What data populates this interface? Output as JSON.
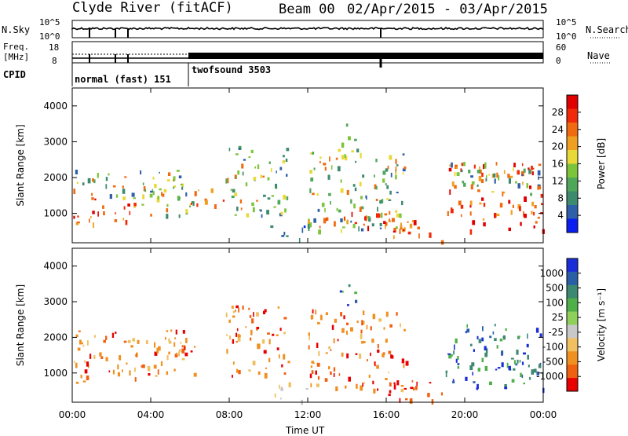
{
  "header": {
    "title": "Clyde River (fitACF)",
    "beam": "Beam 00",
    "date_range": "02/Apr/2015 - 03/Apr/2015"
  },
  "nsky_panel": {
    "left_label": "N.Sky",
    "right_label": "N.Search",
    "left_ticks": [
      "10^5",
      "10^0"
    ],
    "right_ticks": [
      "10^5",
      "10^0"
    ]
  },
  "freq_panel": {
    "left_label_1": "Freq.",
    "left_label_2": "[MHz]",
    "left_ticks": [
      "18",
      "8"
    ],
    "right_ticks": [
      "60",
      "0"
    ],
    "right_label": "Nave"
  },
  "cpid": {
    "label": "CPID",
    "mode_1": "normal (fast) 151",
    "mode_2": "twofsound 3503"
  },
  "x_axis": {
    "label": "Time UT",
    "ticks": [
      "00:00",
      "04:00",
      "08:00",
      "12:00",
      "16:00",
      "20:00",
      "00:00"
    ]
  },
  "chart_data": [
    {
      "type": "heatmap",
      "panel": "power",
      "ylabel": "Slant Range [km]",
      "yticks": [
        1000,
        2000,
        3000,
        4000
      ],
      "xlim": [
        0,
        24
      ],
      "ylim": [
        180,
        4500
      ],
      "colorbar": {
        "label": "Power [dB]",
        "ticks": [
          4,
          8,
          12,
          16,
          20,
          24,
          28
        ],
        "colors": [
          "#0a1ef0",
          "#2e5fa8",
          "#3d8a6e",
          "#4fa85a",
          "#7cc43a",
          "#e8d838",
          "#f0a020",
          "#f06a10",
          "#f02a08",
          "#e00000"
        ]
      },
      "blobs": [
        {
          "t0": 0.0,
          "t1": 3.2,
          "r0": 700,
          "r1": 1400,
          "level": "high"
        },
        {
          "t0": 0.0,
          "t1": 5.8,
          "r0": 1400,
          "r1": 2200,
          "level": "mid"
        },
        {
          "t0": 3.5,
          "t1": 6.2,
          "r0": 900,
          "r1": 1900,
          "level": "mid"
        },
        {
          "t0": 6.0,
          "t1": 7.8,
          "r0": 1200,
          "r1": 1700,
          "level": "high"
        },
        {
          "t0": 7.8,
          "t1": 11.0,
          "r0": 900,
          "r1": 2900,
          "level": "mid"
        },
        {
          "t0": 10.0,
          "t1": 12.0,
          "r0": 200,
          "r1": 700,
          "level": "low"
        },
        {
          "t0": 12.0,
          "t1": 17.0,
          "r0": 500,
          "r1": 2800,
          "level": "mid"
        },
        {
          "t0": 12.0,
          "t1": 17.0,
          "r0": 500,
          "r1": 1100,
          "level": "high"
        },
        {
          "t0": 13.5,
          "t1": 14.5,
          "r0": 2700,
          "r1": 3500,
          "level": "mid"
        },
        {
          "t0": 16.0,
          "t1": 19.0,
          "r0": 200,
          "r1": 800,
          "level": "high"
        },
        {
          "t0": 19.0,
          "t1": 24.0,
          "r0": 500,
          "r1": 2400,
          "level": "high"
        },
        {
          "t0": 19.0,
          "t1": 24.0,
          "r0": 1500,
          "r1": 2400,
          "level": "mid"
        }
      ]
    },
    {
      "type": "heatmap",
      "panel": "velocity",
      "ylabel": "Slant Range [km]",
      "yticks": [
        1000,
        2000,
        3000,
        4000
      ],
      "xlim": [
        0,
        24
      ],
      "ylim": [
        180,
        4500
      ],
      "colorbar": {
        "label": "Velocity [m s⁻¹]",
        "ticks": [
          1000,
          500,
          100,
          25,
          -25,
          -100,
          -500,
          -1000
        ],
        "colors": [
          "#1a2ed8",
          "#2a5fa8",
          "#3c8870",
          "#4fb04a",
          "#8fd05a",
          "#c8c8c8",
          "#f0c060",
          "#f09020",
          "#f06010",
          "#e80000"
        ]
      },
      "blobs": [
        {
          "t0": 0.0,
          "t1": 3.2,
          "r0": 700,
          "r1": 1400,
          "level": "neg"
        },
        {
          "t0": 0.0,
          "t1": 5.8,
          "r0": 1400,
          "r1": 2200,
          "level": "neg"
        },
        {
          "t0": 3.5,
          "t1": 6.2,
          "r0": 900,
          "r1": 1900,
          "level": "neg"
        },
        {
          "t0": 7.8,
          "t1": 11.0,
          "r0": 900,
          "r1": 2900,
          "level": "neg"
        },
        {
          "t0": 10.0,
          "t1": 12.0,
          "r0": 200,
          "r1": 700,
          "level": "zero"
        },
        {
          "t0": 12.0,
          "t1": 17.0,
          "r0": 500,
          "r1": 2800,
          "level": "neg"
        },
        {
          "t0": 13.5,
          "t1": 14.5,
          "r0": 2700,
          "r1": 3500,
          "level": "pos"
        },
        {
          "t0": 16.0,
          "t1": 19.0,
          "r0": 200,
          "r1": 800,
          "level": "strongneg"
        },
        {
          "t0": 19.0,
          "t1": 24.0,
          "r0": 500,
          "r1": 2400,
          "level": "pos"
        }
      ]
    }
  ]
}
